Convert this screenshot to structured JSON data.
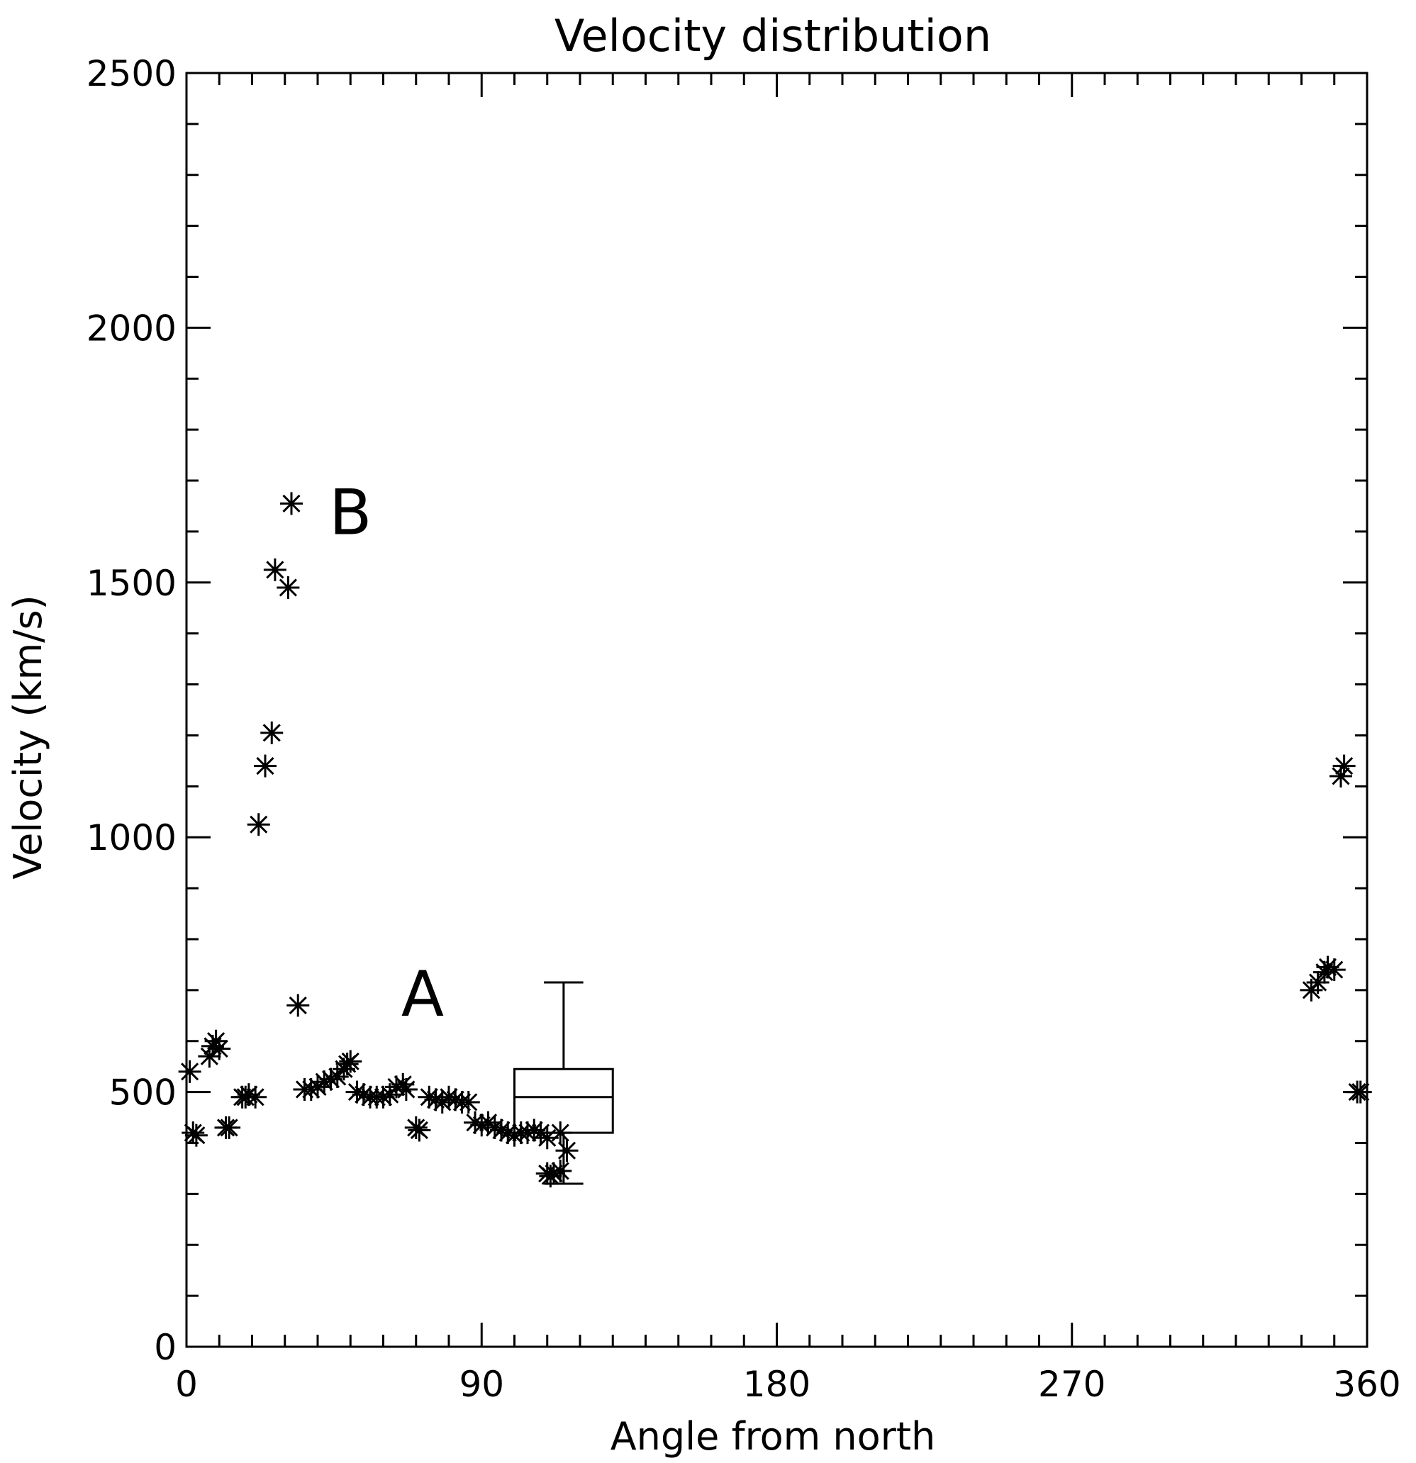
{
  "chart_data": {
    "type": "scatter",
    "title": "Velocity distribution",
    "xlabel": "Angle from north",
    "ylabel": "Velocity (km/s)",
    "xlim": [
      0,
      360
    ],
    "ylim": [
      0,
      2500
    ],
    "xticks": [
      0,
      90,
      180,
      270,
      360
    ],
    "yticks": [
      0,
      500,
      1000,
      1500,
      2000,
      2500
    ],
    "x_minor_step": 10,
    "y_minor_step": 100,
    "grid": false,
    "marker": "asterisk",
    "series": [
      {
        "points": [
          [
            1,
            540
          ],
          [
            2,
            420
          ],
          [
            3,
            415
          ],
          [
            7,
            570
          ],
          [
            8,
            590
          ],
          [
            9,
            600
          ],
          [
            10,
            585
          ],
          [
            12,
            430
          ],
          [
            13,
            430
          ],
          [
            17,
            490
          ],
          [
            18,
            490
          ],
          [
            19,
            495
          ],
          [
            21,
            490
          ],
          [
            22,
            1025
          ],
          [
            24,
            1140
          ],
          [
            26,
            1205
          ],
          [
            27,
            1525
          ],
          [
            31,
            1490
          ],
          [
            32,
            1655
          ],
          [
            34,
            670
          ],
          [
            36,
            505
          ],
          [
            38,
            505
          ],
          [
            40,
            510
          ],
          [
            42,
            520
          ],
          [
            44,
            525
          ],
          [
            46,
            530
          ],
          [
            48,
            545
          ],
          [
            49,
            555
          ],
          [
            50,
            560
          ],
          [
            52,
            500
          ],
          [
            54,
            495
          ],
          [
            56,
            490
          ],
          [
            58,
            490
          ],
          [
            60,
            490
          ],
          [
            62,
            495
          ],
          [
            64,
            510
          ],
          [
            66,
            515
          ],
          [
            67,
            505
          ],
          [
            70,
            430
          ],
          [
            71,
            425
          ],
          [
            74,
            490
          ],
          [
            76,
            485
          ],
          [
            78,
            480
          ],
          [
            80,
            490
          ],
          [
            82,
            485
          ],
          [
            84,
            480
          ],
          [
            86,
            480
          ],
          [
            88,
            440
          ],
          [
            90,
            435
          ],
          [
            92,
            440
          ],
          [
            94,
            430
          ],
          [
            96,
            425
          ],
          [
            98,
            420
          ],
          [
            100,
            415
          ],
          [
            102,
            420
          ],
          [
            104,
            420
          ],
          [
            106,
            425
          ],
          [
            108,
            420
          ],
          [
            110,
            410
          ],
          [
            110,
            340
          ],
          [
            111,
            335
          ],
          [
            112,
            340
          ],
          [
            114,
            345
          ],
          [
            114,
            420
          ],
          [
            116,
            385
          ],
          [
            343,
            700
          ],
          [
            345,
            715
          ],
          [
            347,
            735
          ],
          [
            348,
            745
          ],
          [
            350,
            740
          ],
          [
            352,
            1120
          ],
          [
            353,
            1140
          ],
          [
            357,
            500
          ],
          [
            358,
            500
          ]
        ]
      }
    ],
    "boxplot": {
      "x_range": [
        100,
        130
      ],
      "whisker_low": 320,
      "q1": 420,
      "median": 490,
      "q3": 545,
      "whisker_high": 715
    },
    "annotations": [
      {
        "text": "A",
        "x": 72,
        "y": 650
      },
      {
        "text": "B",
        "x": 50,
        "y": 1595
      }
    ]
  }
}
